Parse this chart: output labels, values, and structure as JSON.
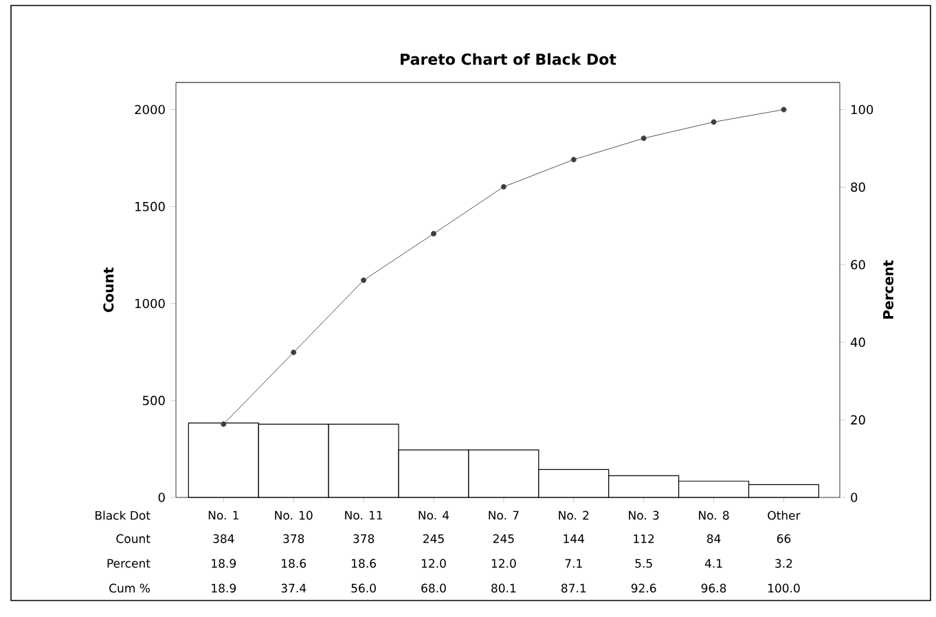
{
  "chart_data": {
    "type": "bar",
    "title": "Pareto Chart of Black Dot",
    "xlabel": "Black Dot",
    "ylabel": "Count",
    "y2label": "Percent",
    "categories": [
      "No. 1",
      "No. 10",
      "No. 11",
      "No. 4",
      "No. 7",
      "No. 2",
      "No. 3",
      "No. 8",
      "Other"
    ],
    "series": [
      {
        "color": "#ffffff",
        "values": [
          384,
          378,
          378,
          245,
          245,
          144,
          112,
          84,
          66
        ],
        "value_labels": [
          "384",
          "378",
          "378",
          "245",
          "245",
          "144",
          "112",
          "84",
          "66"
        ]
      },
      {
        "type": "line",
        "axis": "y2",
        "color": "#555555",
        "marker": "circle",
        "values": [
          18.9,
          37.4,
          56.0,
          68.0,
          80.1,
          87.1,
          92.6,
          96.8,
          100.0
        ],
        "value_labels": [
          "18.9",
          "37.4",
          "56.0",
          "68.0",
          "80.1",
          "87.1",
          "92.6",
          "96.8",
          "100.0"
        ]
      }
    ],
    "annotations": [
      "Count",
      "Percent",
      "Cum %",
      "18.9",
      "18.6",
      "18.6",
      "12.0",
      "12.0",
      "7.1",
      "5.5",
      "4.1",
      "3.2"
    ],
    "grid": false,
    "ylim": [
      0,
      2140
    ],
    "yticks": [
      0,
      500,
      1000,
      1500,
      2000
    ],
    "y2lim": [
      0,
      107
    ],
    "y2ticks": [
      0,
      20,
      40,
      60,
      80,
      100
    ]
  }
}
